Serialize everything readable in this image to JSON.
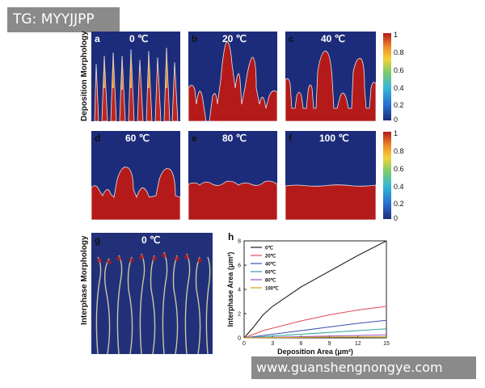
{
  "watermarks": {
    "top": "TG: MYYJJPP",
    "bottom": "www.guanshengnongye.com"
  },
  "row_labels": {
    "deposition": "Deposition Morphology",
    "interphase": "Interphase Morphology"
  },
  "panels": [
    {
      "letter": "a",
      "title": "0 ℃"
    },
    {
      "letter": "b",
      "title": "20 ℃"
    },
    {
      "letter": "c",
      "title": "40 ℃"
    },
    {
      "letter": "d",
      "title": "60 ℃"
    },
    {
      "letter": "e",
      "title": "80 ℃"
    },
    {
      "letter": "f",
      "title": "100 ℃"
    },
    {
      "letter": "g",
      "title": "0 ℃"
    },
    {
      "letter": "h",
      "title": ""
    }
  ],
  "colorbar": {
    "ticks": [
      "1",
      "0.8",
      "0.6",
      "0.4",
      "0.2",
      "0"
    ],
    "colors": {
      "low": "#1d2c7a",
      "high": "#b41a1a"
    }
  },
  "chart_data": {
    "type": "line",
    "xlabel": "Deposition Area (μm²)",
    "ylabel": "Interphase Area (μm²)",
    "xlim": [
      0,
      15
    ],
    "ylim": [
      0,
      8
    ],
    "xticks": [
      0,
      3,
      6,
      9,
      12,
      15
    ],
    "yticks": [
      0,
      2,
      4,
      6,
      8
    ],
    "legend_position": "top-left",
    "series": [
      {
        "name": "0℃",
        "color": "#222222",
        "x": [
          0,
          1,
          2,
          3,
          6,
          9,
          12,
          15
        ],
        "y": [
          0,
          0.9,
          1.9,
          2.6,
          4.2,
          5.5,
          6.8,
          8.0
        ]
      },
      {
        "name": "20℃",
        "color": "#e0505a",
        "x": [
          0,
          1,
          2,
          3,
          6,
          9,
          12,
          15
        ],
        "y": [
          0,
          0.3,
          0.6,
          0.8,
          1.4,
          1.9,
          2.3,
          2.6
        ]
      },
      {
        "name": "40℃",
        "color": "#3a4fb0",
        "x": [
          0,
          3,
          6,
          9,
          12,
          15
        ],
        "y": [
          0,
          0.3,
          0.6,
          0.9,
          1.2,
          1.45
        ]
      },
      {
        "name": "60℃",
        "color": "#2aa3a0",
        "x": [
          0,
          3,
          6,
          9,
          12,
          15
        ],
        "y": [
          0,
          0.15,
          0.3,
          0.45,
          0.6,
          0.75
        ]
      },
      {
        "name": "80℃",
        "color": "#9a55b8",
        "x": [
          0,
          3,
          6,
          9,
          12,
          15
        ],
        "y": [
          0,
          0.05,
          0.1,
          0.15,
          0.2,
          0.25
        ]
      },
      {
        "name": "100℃",
        "color": "#d4a020",
        "x": [
          0,
          3,
          6,
          9,
          12,
          15
        ],
        "y": [
          0,
          0.02,
          0.04,
          0.06,
          0.08,
          0.1
        ]
      }
    ]
  }
}
